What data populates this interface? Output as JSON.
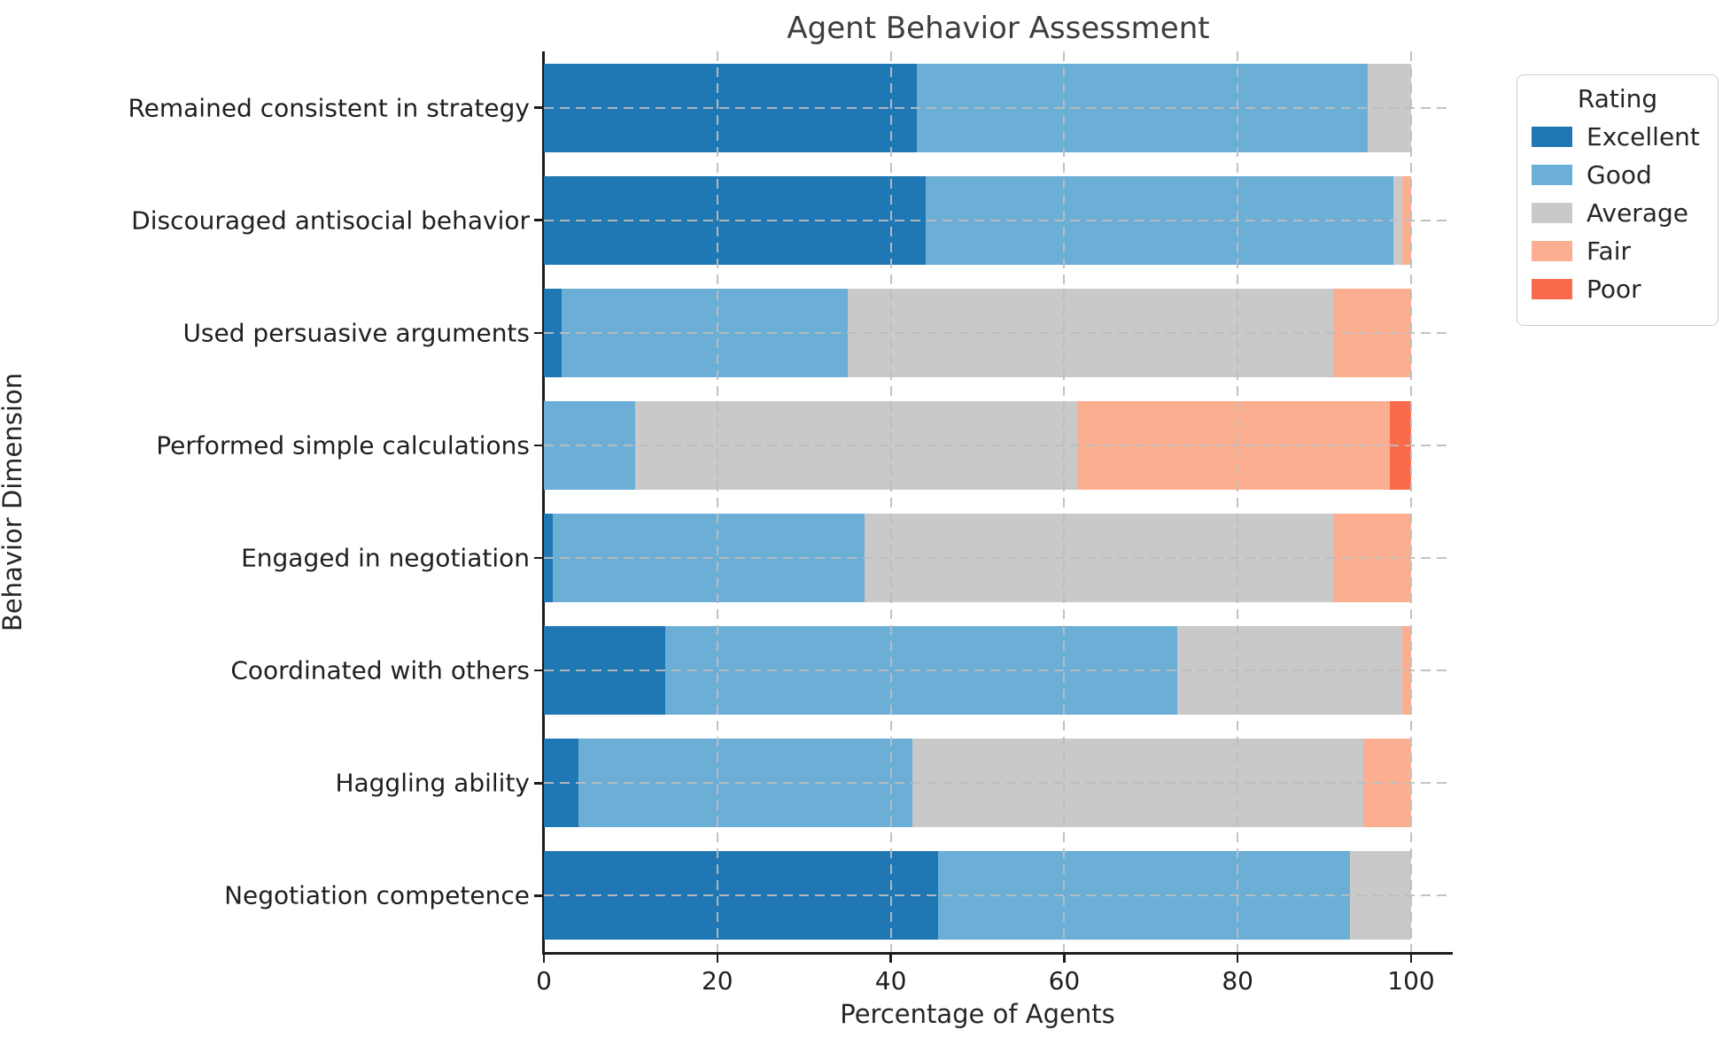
{
  "chart_data": {
    "type": "bar",
    "orientation": "horizontal",
    "stacked": true,
    "title": "Agent Behavior Assessment",
    "xlabel": "Percentage of Agents",
    "ylabel": "Behavior Dimension",
    "legend_title": "Rating",
    "legend_position": "outside upper right",
    "xlim": [
      0,
      105
    ],
    "xticks": [
      0,
      20,
      40,
      60,
      80,
      100
    ],
    "grid": "dashed gray, horizontal and vertical, drawn over bars",
    "categories": [
      "Remained consistent in strategy",
      "Discouraged antisocial behavior",
      "Used persuasive arguments",
      "Performed simple calculations",
      "Engaged in negotiation",
      "Coordinated with others",
      "Haggling ability",
      "Negotiation competence"
    ],
    "series": [
      {
        "name": "Excellent",
        "color": "#1f77b4",
        "values": [
          43,
          44,
          2,
          0,
          1,
          14,
          4,
          45.5
        ]
      },
      {
        "name": "Good",
        "color": "#6baed6",
        "values": [
          52,
          54,
          33,
          10.5,
          36,
          59,
          38.5,
          47.5
        ]
      },
      {
        "name": "Average",
        "color": "#c9c9c9",
        "values": [
          5,
          1,
          56,
          51,
          54,
          26,
          52,
          7
        ]
      },
      {
        "name": "Fair",
        "color": "#fcae91",
        "values": [
          0,
          1,
          9,
          36,
          9,
          1,
          5.5,
          0
        ]
      },
      {
        "name": "Poor",
        "color": "#fb6a4a",
        "values": [
          0,
          0,
          0,
          2.5,
          0,
          0,
          0,
          0
        ]
      }
    ]
  },
  "colors": {
    "spine": "#1c1c1c",
    "gridline": "#bdbdbd",
    "title_text": "#3d3d3d",
    "tick_text": "#1f1f1f",
    "legend_border": "#cfcfcf"
  }
}
